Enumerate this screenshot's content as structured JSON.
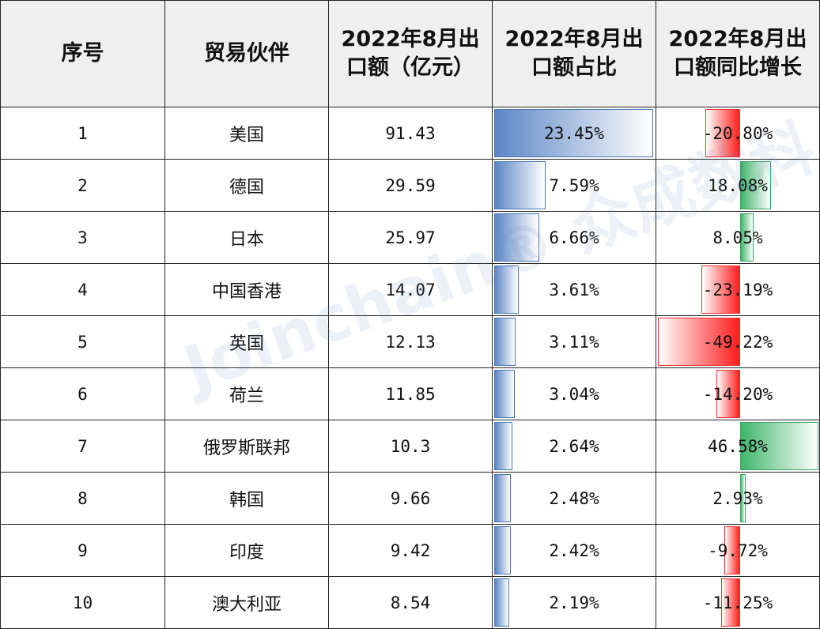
{
  "headers": {
    "index": "序号",
    "partner": "贸易伙伴",
    "export_value": "2022年8月出口额（亿元）",
    "share": "2022年8月出口额占比",
    "yoy": "2022年8月出口额同比增长"
  },
  "rows": [
    {
      "index": "1",
      "partner": "美国",
      "export_value": "91.43",
      "share": "23.45%",
      "yoy": "-20.80%"
    },
    {
      "index": "2",
      "partner": "德国",
      "export_value": "29.59",
      "share": "7.59%",
      "yoy": "18.08%"
    },
    {
      "index": "3",
      "partner": "日本",
      "export_value": "25.97",
      "share": "6.66%",
      "yoy": "8.05%"
    },
    {
      "index": "4",
      "partner": "中国香港",
      "export_value": "14.07",
      "share": "3.61%",
      "yoy": "-23.19%"
    },
    {
      "index": "5",
      "partner": "英国",
      "export_value": "12.13",
      "share": "3.11%",
      "yoy": "-49.22%"
    },
    {
      "index": "6",
      "partner": "荷兰",
      "export_value": "11.85",
      "share": "3.04%",
      "yoy": "-14.20%"
    },
    {
      "index": "7",
      "partner": "俄罗斯联邦",
      "export_value": "10.3",
      "share": "2.64%",
      "yoy": "46.58%"
    },
    {
      "index": "8",
      "partner": "韩国",
      "export_value": "9.66",
      "share": "2.48%",
      "yoy": "2.93%"
    },
    {
      "index": "9",
      "partner": "印度",
      "export_value": "9.42",
      "share": "2.42%",
      "yoy": "-9.72%"
    },
    {
      "index": "10",
      "partner": "澳大利亚",
      "export_value": "8.54",
      "share": "2.19%",
      "yoy": "-11.25%"
    }
  ],
  "bar_scale": {
    "share_max": 23.45,
    "yoy_min": -49.22,
    "yoy_max": 46.58
  },
  "colors": {
    "share_bar": "#5b86c5",
    "negative_bar": "#ff1d1d",
    "positive_bar": "#3fb66a"
  },
  "watermark": "Joinchain® 众成数科"
}
